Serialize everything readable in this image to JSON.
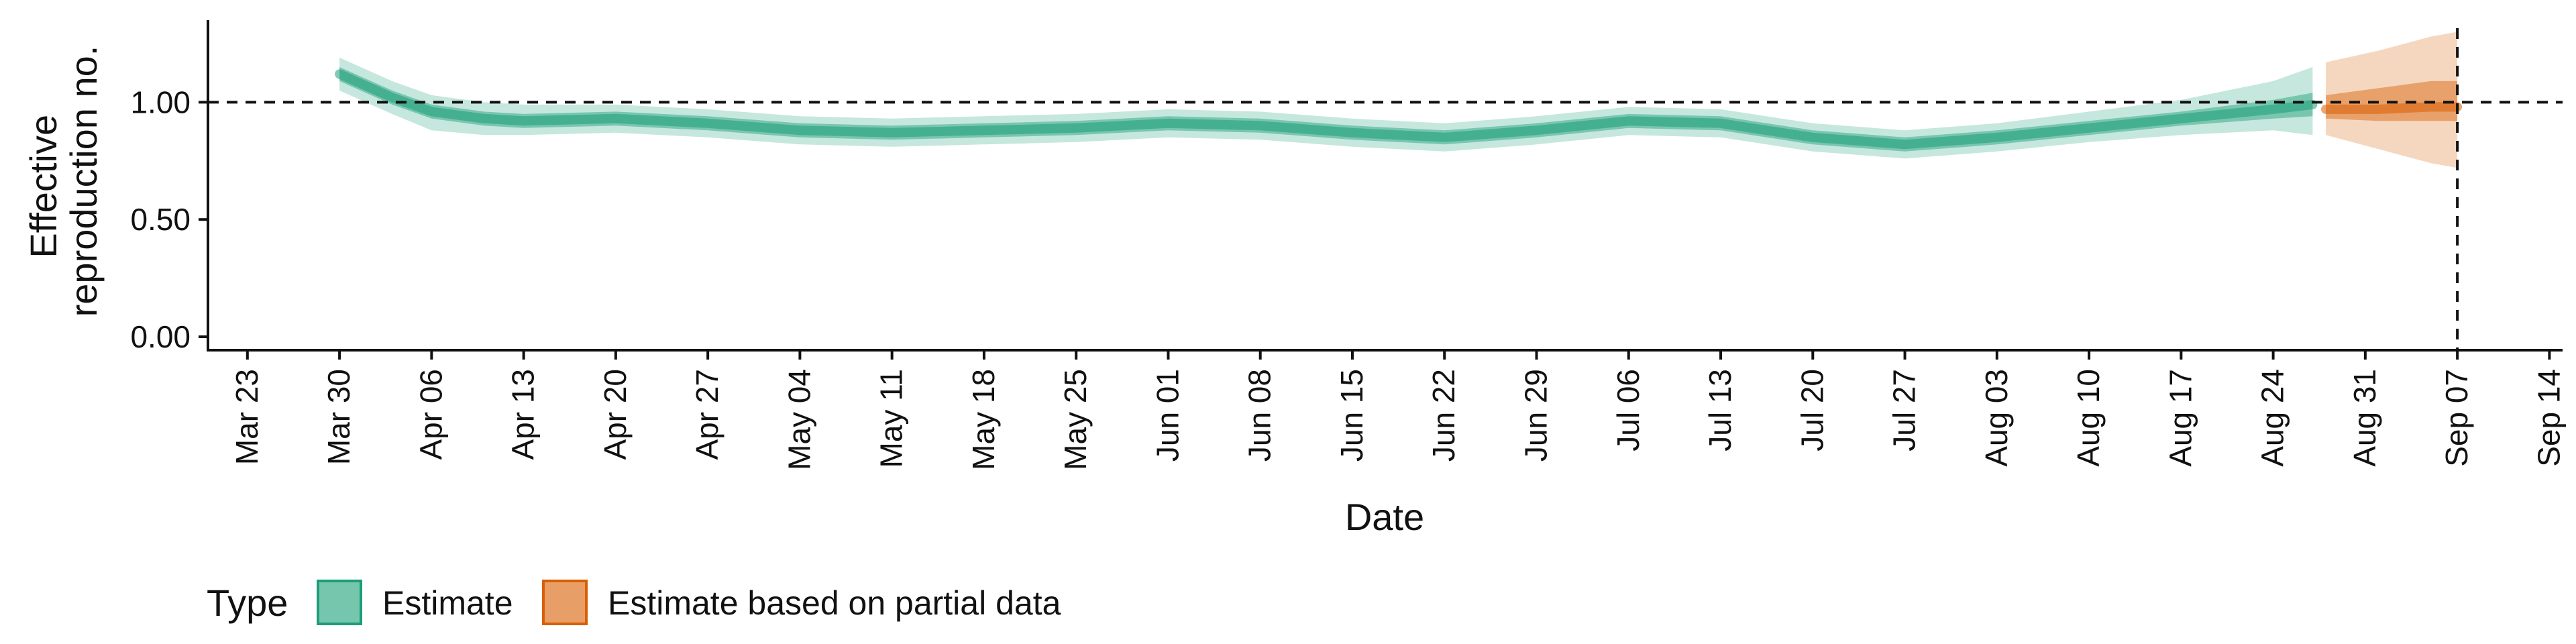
{
  "chart_data": {
    "type": "area",
    "xlabel": "Date",
    "ylabel_lines": [
      "Effective",
      "reproduction no."
    ],
    "x_range": [
      "2020-03-20",
      "2020-09-15"
    ],
    "ylim": [
      0,
      1.35
    ],
    "y_ticks": [
      0,
      0.5,
      1.0
    ],
    "y_tick_labels": [
      "0.00",
      "0.50",
      "1.00"
    ],
    "x_ticks": [
      "2020-03-23",
      "2020-03-30",
      "2020-04-06",
      "2020-04-13",
      "2020-04-20",
      "2020-04-27",
      "2020-05-04",
      "2020-05-11",
      "2020-05-18",
      "2020-05-25",
      "2020-06-01",
      "2020-06-08",
      "2020-06-15",
      "2020-06-22",
      "2020-06-29",
      "2020-07-06",
      "2020-07-13",
      "2020-07-20",
      "2020-07-27",
      "2020-08-03",
      "2020-08-10",
      "2020-08-17",
      "2020-08-24",
      "2020-08-31",
      "2020-09-07",
      "2020-09-14"
    ],
    "x_tick_labels": [
      "Mar 23",
      "Mar 30",
      "Apr 06",
      "Apr 13",
      "Apr 20",
      "Apr 27",
      "May 04",
      "May 11",
      "May 18",
      "May 25",
      "Jun 01",
      "Jun 08",
      "Jun 15",
      "Jun 22",
      "Jun 29",
      "Jul 06",
      "Jul 13",
      "Jul 20",
      "Jul 27",
      "Aug 03",
      "Aug 10",
      "Aug 17",
      "Aug 24",
      "Aug 31",
      "Sep 07",
      "Sep 14"
    ],
    "reference_line_y": 1.0,
    "reference_line_x": "2020-09-07",
    "grid": false,
    "legend_position": "bottom-left",
    "legend_title": "Type",
    "series": [
      {
        "name": "Estimate",
        "color": "#1b9e77",
        "points": [
          {
            "x": "2020-03-30",
            "median": 1.12,
            "lo50": 1.09,
            "hi50": 1.15,
            "lo90": 1.05,
            "hi90": 1.19
          },
          {
            "x": "2020-04-03",
            "median": 1.02,
            "lo50": 0.99,
            "hi50": 1.05,
            "lo90": 0.95,
            "hi90": 1.09
          },
          {
            "x": "2020-04-06",
            "median": 0.96,
            "lo50": 0.93,
            "hi50": 0.99,
            "lo90": 0.88,
            "hi90": 1.03
          },
          {
            "x": "2020-04-10",
            "median": 0.93,
            "lo50": 0.9,
            "hi50": 0.96,
            "lo90": 0.86,
            "hi90": 1.0
          },
          {
            "x": "2020-04-13",
            "median": 0.92,
            "lo50": 0.89,
            "hi50": 0.95,
            "lo90": 0.86,
            "hi90": 0.99
          },
          {
            "x": "2020-04-20",
            "median": 0.93,
            "lo50": 0.9,
            "hi50": 0.96,
            "lo90": 0.87,
            "hi90": 0.99
          },
          {
            "x": "2020-04-27",
            "median": 0.91,
            "lo50": 0.88,
            "hi50": 0.94,
            "lo90": 0.85,
            "hi90": 0.97
          },
          {
            "x": "2020-05-04",
            "median": 0.88,
            "lo50": 0.85,
            "hi50": 0.91,
            "lo90": 0.82,
            "hi90": 0.94
          },
          {
            "x": "2020-05-11",
            "median": 0.87,
            "lo50": 0.84,
            "hi50": 0.9,
            "lo90": 0.81,
            "hi90": 0.93
          },
          {
            "x": "2020-05-18",
            "median": 0.88,
            "lo50": 0.85,
            "hi50": 0.91,
            "lo90": 0.82,
            "hi90": 0.94
          },
          {
            "x": "2020-05-25",
            "median": 0.89,
            "lo50": 0.86,
            "hi50": 0.92,
            "lo90": 0.83,
            "hi90": 0.95
          },
          {
            "x": "2020-06-01",
            "median": 0.91,
            "lo50": 0.88,
            "hi50": 0.94,
            "lo90": 0.85,
            "hi90": 0.97
          },
          {
            "x": "2020-06-08",
            "median": 0.9,
            "lo50": 0.87,
            "hi50": 0.93,
            "lo90": 0.84,
            "hi90": 0.96
          },
          {
            "x": "2020-06-15",
            "median": 0.87,
            "lo50": 0.84,
            "hi50": 0.9,
            "lo90": 0.81,
            "hi90": 0.93
          },
          {
            "x": "2020-06-22",
            "median": 0.85,
            "lo50": 0.82,
            "hi50": 0.88,
            "lo90": 0.79,
            "hi90": 0.91
          },
          {
            "x": "2020-06-29",
            "median": 0.88,
            "lo50": 0.85,
            "hi50": 0.91,
            "lo90": 0.82,
            "hi90": 0.94
          },
          {
            "x": "2020-07-06",
            "median": 0.92,
            "lo50": 0.89,
            "hi50": 0.95,
            "lo90": 0.86,
            "hi90": 0.98
          },
          {
            "x": "2020-07-13",
            "median": 0.91,
            "lo50": 0.88,
            "hi50": 0.94,
            "lo90": 0.85,
            "hi90": 0.97
          },
          {
            "x": "2020-07-20",
            "median": 0.85,
            "lo50": 0.82,
            "hi50": 0.88,
            "lo90": 0.79,
            "hi90": 0.91
          },
          {
            "x": "2020-07-27",
            "median": 0.82,
            "lo50": 0.79,
            "hi50": 0.85,
            "lo90": 0.76,
            "hi90": 0.88
          },
          {
            "x": "2020-08-03",
            "median": 0.85,
            "lo50": 0.82,
            "hi50": 0.88,
            "lo90": 0.79,
            "hi90": 0.91
          },
          {
            "x": "2020-08-10",
            "median": 0.89,
            "lo50": 0.86,
            "hi50": 0.92,
            "lo90": 0.83,
            "hi90": 0.96
          },
          {
            "x": "2020-08-17",
            "median": 0.93,
            "lo50": 0.9,
            "hi50": 0.96,
            "lo90": 0.86,
            "hi90": 1.01
          },
          {
            "x": "2020-08-24",
            "median": 0.97,
            "lo50": 0.93,
            "hi50": 1.01,
            "lo90": 0.88,
            "hi90": 1.09
          },
          {
            "x": "2020-08-27",
            "median": 0.99,
            "lo50": 0.94,
            "hi50": 1.04,
            "lo90": 0.86,
            "hi90": 1.15
          }
        ]
      },
      {
        "name": "Estimate based on partial data",
        "color": "#d95f02",
        "points": [
          {
            "x": "2020-08-28",
            "median": 0.97,
            "lo50": 0.93,
            "hi50": 1.03,
            "lo90": 0.86,
            "hi90": 1.17
          },
          {
            "x": "2020-09-01",
            "median": 0.97,
            "lo50": 0.92,
            "hi50": 1.06,
            "lo90": 0.8,
            "hi90": 1.22
          },
          {
            "x": "2020-09-05",
            "median": 0.98,
            "lo50": 0.92,
            "hi50": 1.09,
            "lo90": 0.74,
            "hi90": 1.28
          },
          {
            "x": "2020-09-07",
            "median": 0.98,
            "lo50": 0.92,
            "hi50": 1.09,
            "lo90": 0.72,
            "hi90": 1.3
          }
        ]
      }
    ]
  }
}
